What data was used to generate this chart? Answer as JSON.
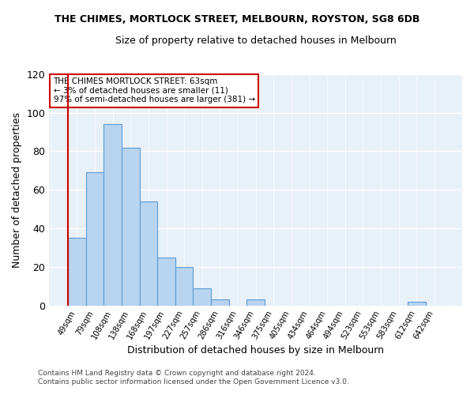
{
  "title": "THE CHIMES, MORTLOCK STREET, MELBOURN, ROYSTON, SG8 6DB",
  "subtitle": "Size of property relative to detached houses in Melbourn",
  "xlabel": "Distribution of detached houses by size in Melbourn",
  "ylabel": "Number of detached properties",
  "bar_color": "#b8d4ee",
  "bar_edge_color": "#5b9bd5",
  "bg_color": "#e8f0f8",
  "grid_color": "#ffffff",
  "categories": [
    "49sqm",
    "79sqm",
    "108sqm",
    "138sqm",
    "168sqm",
    "197sqm",
    "227sqm",
    "257sqm",
    "286sqm",
    "316sqm",
    "346sqm",
    "375sqm",
    "405sqm",
    "434sqm",
    "464sqm",
    "494sqm",
    "523sqm",
    "553sqm",
    "583sqm",
    "612sqm",
    "642sqm"
  ],
  "values": [
    35,
    69,
    94,
    82,
    54,
    25,
    20,
    9,
    3,
    0,
    3,
    0,
    0,
    0,
    0,
    0,
    0,
    0,
    0,
    2,
    0
  ],
  "ylim": [
    0,
    120
  ],
  "yticks": [
    0,
    20,
    40,
    60,
    80,
    100,
    120
  ],
  "annotation_box": {
    "line1": "THE CHIMES MORTLOCK STREET: 63sqm",
    "line2": "← 3% of detached houses are smaller (11)",
    "line3": "97% of semi-detached houses are larger (381) →"
  },
  "footer1": "Contains HM Land Registry data © Crown copyright and database right 2024.",
  "footer2": "Contains public sector information licensed under the Open Government Licence v3.0.",
  "red_line_color": "#cc0000",
  "red_line_x": -0.5
}
